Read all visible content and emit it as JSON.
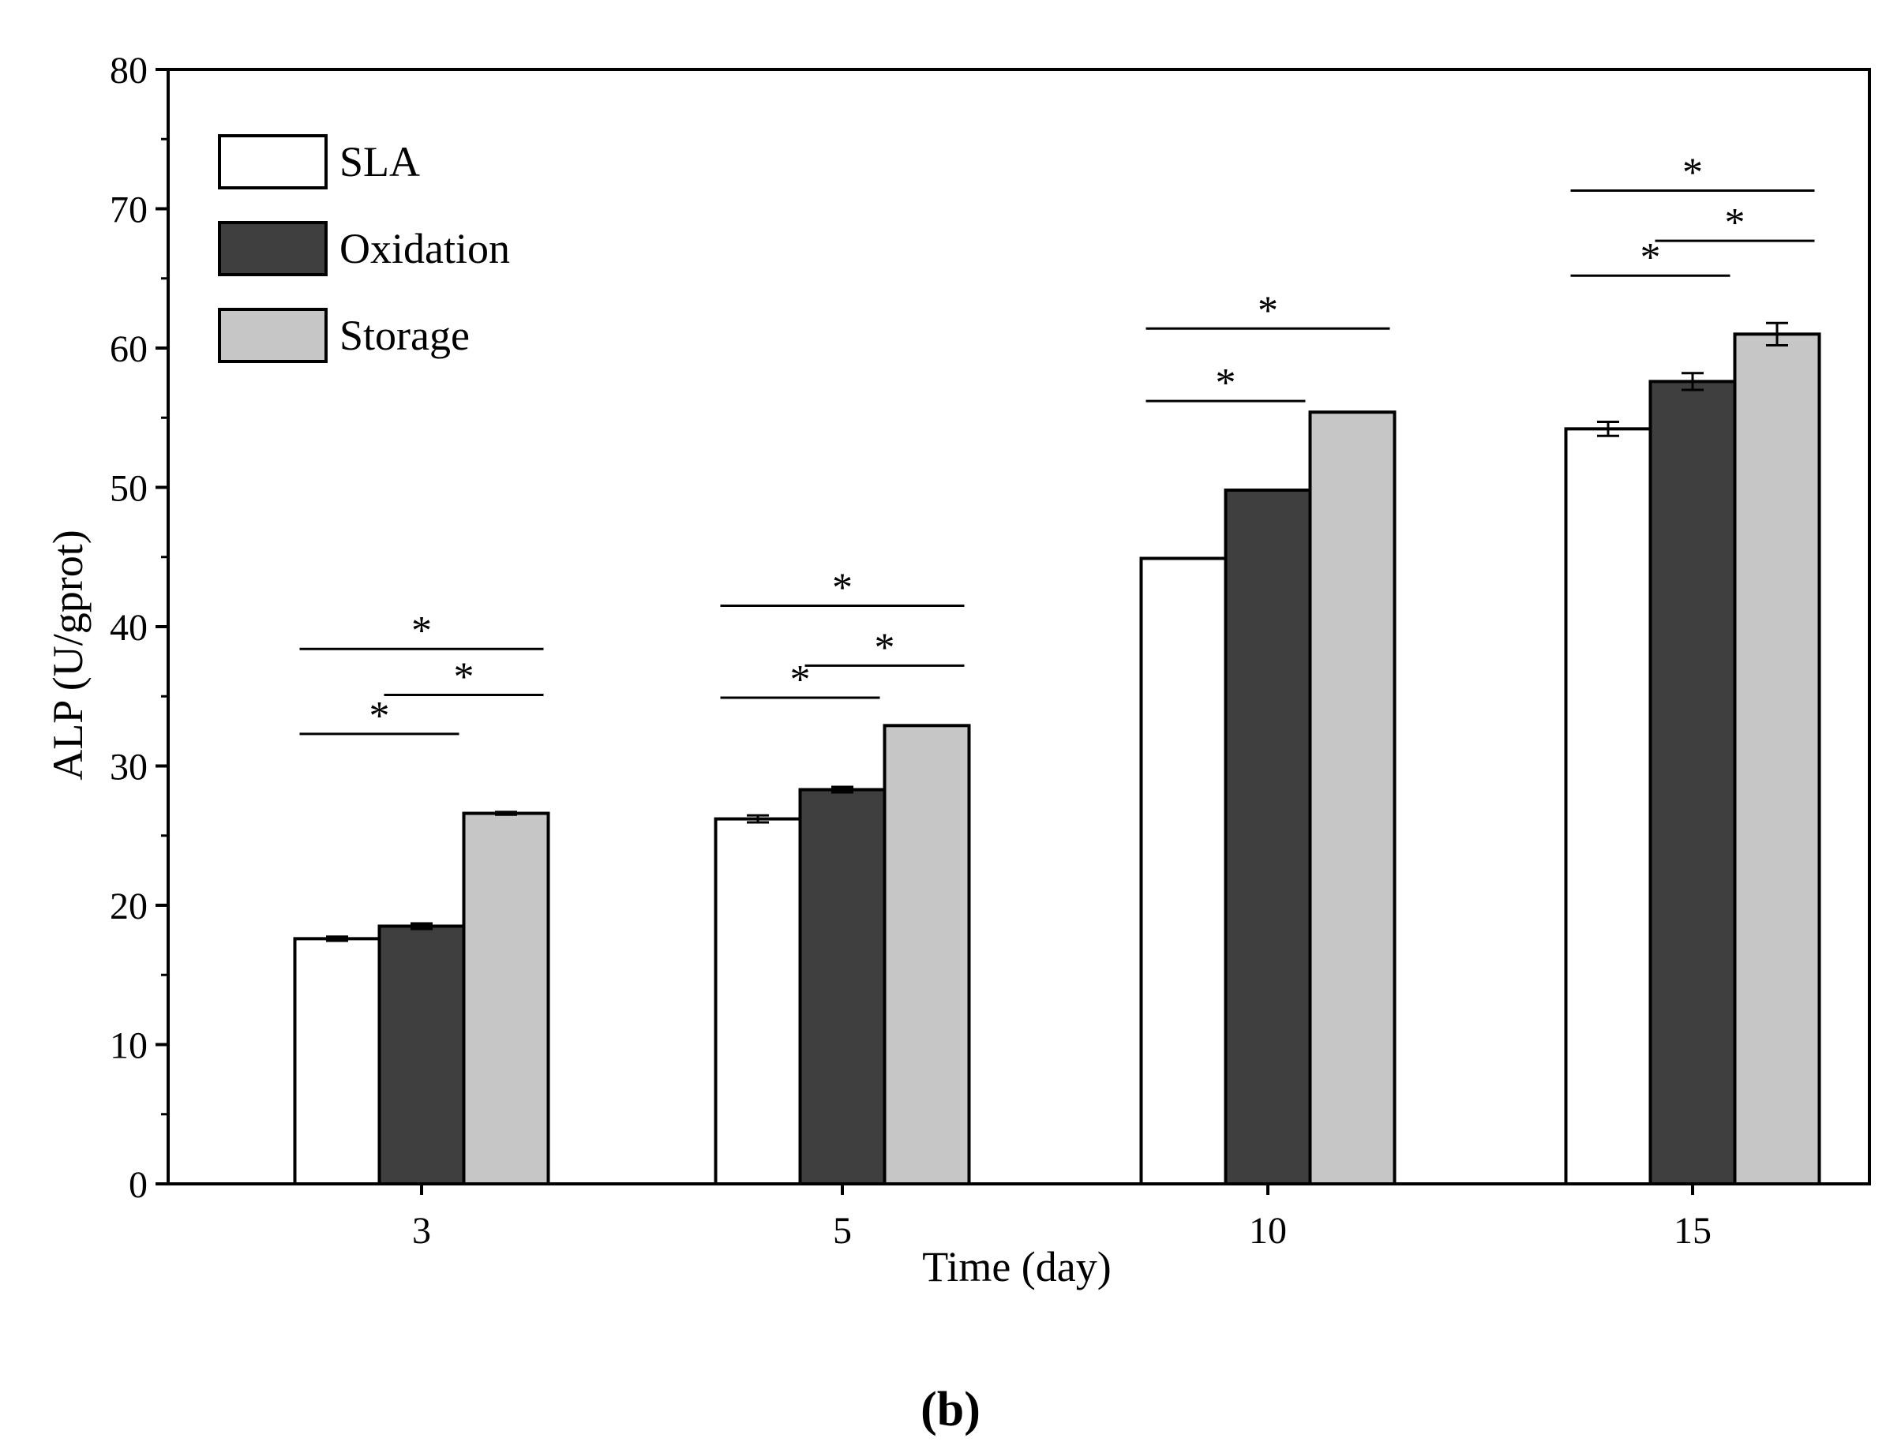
{
  "chart_data": {
    "type": "bar",
    "categories": [
      "3",
      "5",
      "10",
      "15"
    ],
    "series": [
      {
        "name": "SLA",
        "color": "#ffffff",
        "values": [
          17.6,
          26.2,
          44.9,
          54.2
        ],
        "errors": [
          0.15,
          0.25,
          0.0,
          0.5
        ]
      },
      {
        "name": "Oxidation",
        "color": "#3f3f3f",
        "values": [
          18.5,
          28.3,
          49.8,
          57.6
        ],
        "errors": [
          0.2,
          0.2,
          0.0,
          0.6
        ]
      },
      {
        "name": "Storage",
        "color": "#c6c6c6",
        "values": [
          26.6,
          32.9,
          55.4,
          61.0
        ],
        "errors": [
          0.1,
          0.0,
          0.0,
          0.8
        ]
      }
    ],
    "xlabel": "Time (day)",
    "ylabel": "ALP (U/gprot)",
    "ylim": [
      0,
      80
    ],
    "yticks": [
      "0",
      "10",
      "20",
      "30",
      "40",
      "50",
      "60",
      "70",
      "80"
    ],
    "ytick_values": [
      0,
      10,
      20,
      30,
      40,
      50,
      60,
      70,
      80
    ],
    "legend_position": "top-left",
    "significance": [
      {
        "category": 0,
        "from": 0,
        "to": 1,
        "y": 32.3,
        "label": "*"
      },
      {
        "category": 0,
        "from": 1,
        "to": 2,
        "y": 35.1,
        "label": "*"
      },
      {
        "category": 0,
        "from": 0,
        "to": 2,
        "y": 38.4,
        "label": "*"
      },
      {
        "category": 1,
        "from": 0,
        "to": 1,
        "y": 34.9,
        "label": "*"
      },
      {
        "category": 1,
        "from": 1,
        "to": 2,
        "y": 37.2,
        "label": "*"
      },
      {
        "category": 1,
        "from": 0,
        "to": 2,
        "y": 41.5,
        "label": "*"
      },
      {
        "category": 2,
        "from": 0,
        "to": 1,
        "y": 56.2,
        "label": "*"
      },
      {
        "category": 2,
        "from": 0,
        "to": 2,
        "y": 61.4,
        "label": "*"
      },
      {
        "category": 3,
        "from": 0,
        "to": 1,
        "y": 65.2,
        "label": "*"
      },
      {
        "category": 3,
        "from": 1,
        "to": 2,
        "y": 67.7,
        "label": "*"
      },
      {
        "category": 3,
        "from": 0,
        "to": 2,
        "y": 71.3,
        "label": "*"
      }
    ]
  },
  "panel_label": "(b)"
}
